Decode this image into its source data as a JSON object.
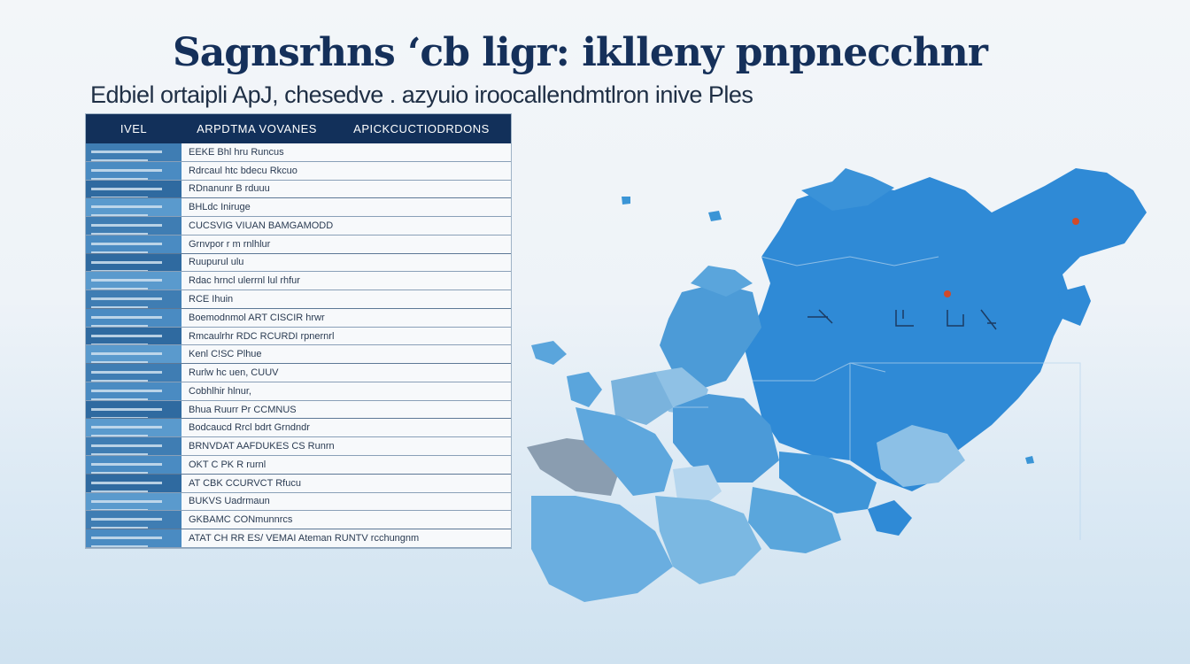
{
  "header": {
    "title": "Sagnsrhns ‘cb ligr: iklleny pnpnecchnr",
    "subtitle": "Edbiel ortaipli ApJ, chesedve . azyuio iroocallendmtlron inive  Ples"
  },
  "table": {
    "headers": [
      "IVEL",
      "ARPDTMA VOVANES",
      "APICKCUCTIODRDONS"
    ],
    "rows": [
      "EEKE Bhl hru  Runcus",
      "Rdrcaul htc  bdecu  Rkcuo",
      "RDnanunr  B rduuu",
      "BHLdc  Iniruge",
      "CUCSVIG  VIUAN  BAMGAMODD",
      "Grnvpor  r m  rnlhlur",
      "Ruupurul  ulu",
      "Rdac hrncl  ulerrnl lul  rhfur",
      "RCE Ihuin",
      "Boemodnmol  ART CISCIR  hrwr",
      "Rmcaulrhr  RDC  RCURDI  rpnernrl",
      "Kenl  C!SC  Plhue",
      "Rurlw  hc uen,  CUUV",
      "Cobhlhir  hlnur,",
      "Bhua  Ruurr  Pr CCMNUS",
      "Bodcaucd  Rrcl  bdrt  Grndndr",
      "BRNVDAT  AAFDUKES  CS  Runrn",
      "OKT  C PK  R  rurnl",
      "AT  CBK  CCURVCT  Rfucu",
      "BUKVS  Uadrmaun",
      "GKBAMC CONmunnrcs",
      "ATAT  CH RR  ES/  VEMAI Ateman  RUNTV rcchungnm"
    ]
  },
  "map": {
    "markers": [
      "red-dot-north-east",
      "red-dot-central"
    ],
    "sea_color": "#eef3f8",
    "land_colors": [
      "#2e8fd8",
      "#3b95d6",
      "#5aa5dc",
      "#7fb6dc",
      "#a8cde6",
      "#8c9fb0"
    ]
  }
}
